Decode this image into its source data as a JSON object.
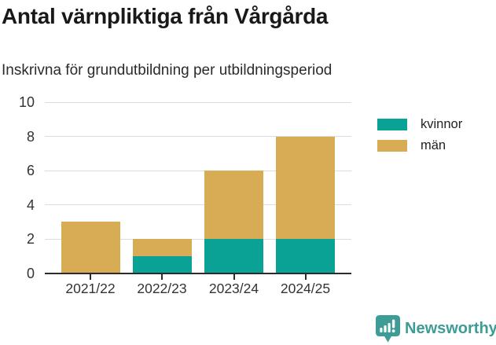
{
  "chart_data": {
    "type": "bar",
    "stacked": true,
    "title": "Antal värnpliktiga från Vårgårda",
    "subtitle": "Inskrivna för grundutbildning per utbildningsperiod",
    "categories": [
      "2021/22",
      "2022/23",
      "2023/24",
      "2024/25"
    ],
    "series": [
      {
        "name": "kvinnor",
        "color": "#0aa295",
        "values": [
          0,
          1,
          2,
          2
        ]
      },
      {
        "name": "män",
        "color": "#d8ac55",
        "values": [
          3,
          1,
          4,
          6
        ]
      }
    ],
    "xlabel": "",
    "ylabel": "",
    "ylim": [
      0,
      10
    ],
    "yticks": [
      0,
      2,
      4,
      6,
      8,
      10
    ],
    "grid": true,
    "legend_position": "top-right"
  },
  "colors": {
    "kvinnor": "#0aa295",
    "man": "#d8ac55",
    "gridline": "#dcdcdc",
    "axis": "#2b2b2b",
    "brand_teal": "#3d9c95"
  },
  "footer": {
    "brand": "Newsworthy",
    "logo_icon": "bar-chart-exclamation-bubble-icon"
  }
}
